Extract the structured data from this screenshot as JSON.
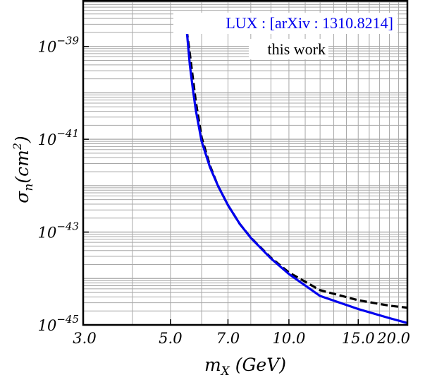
{
  "chart_data": {
    "type": "line",
    "xlabel": "m_X (GeV)",
    "ylabel": "σ_n(cm^2)",
    "x_scale": "log",
    "y_scale": "log",
    "xlim": [
      3.0,
      20.0
    ],
    "ylim": [
      1e-45,
      1e-38
    ],
    "x_ticks": [
      {
        "value": 3.0,
        "label": "3.0"
      },
      {
        "value": 5.0,
        "label": "5.0"
      },
      {
        "value": 7.0,
        "label": "7.0"
      },
      {
        "value": 10.0,
        "label": "10.0"
      },
      {
        "value": 15.0,
        "label": "15.0"
      },
      {
        "value": 20.0,
        "label": "20.0"
      }
    ],
    "y_ticks": [
      {
        "value": 1e-45,
        "base": "10",
        "exp": "−45"
      },
      {
        "value": 1e-43,
        "base": "10",
        "exp": "−43"
      },
      {
        "value": 1e-41,
        "base": "10",
        "exp": "−41"
      },
      {
        "value": 1e-39,
        "base": "10",
        "exp": "−39"
      }
    ],
    "grid": true,
    "legend_position": "top-right",
    "series": [
      {
        "name": "LUX : [arXiv : 1310.8214]",
        "color": "#0000ee",
        "style": "solid",
        "points": [
          [
            5.5,
            2.2e-39
          ],
          [
            5.6,
            4e-40
          ],
          [
            5.7,
            1.2e-40
          ],
          [
            5.8,
            4.2e-41
          ],
          [
            6.0,
            9e-42
          ],
          [
            6.3,
            2.5e-42
          ],
          [
            6.6,
            1e-42
          ],
          [
            7.0,
            3.8e-43
          ],
          [
            7.5,
            1.5e-43
          ],
          [
            8.0,
            7.5e-44
          ],
          [
            9.0,
            2.7e-44
          ],
          [
            10.0,
            1.25e-44
          ],
          [
            12.0,
            4.2e-45
          ],
          [
            15.0,
            2.2e-45
          ],
          [
            18.0,
            1.4e-45
          ],
          [
            20.0,
            1.1e-45
          ]
        ]
      },
      {
        "name": "this work",
        "color": "#000000",
        "style": "dashed",
        "points": [
          [
            5.5,
            2.2e-39
          ],
          [
            5.6,
            7e-40
          ],
          [
            5.7,
            2.1e-40
          ],
          [
            5.8,
            6.5e-41
          ],
          [
            6.0,
            1.1e-41
          ],
          [
            6.3,
            2.7e-42
          ],
          [
            6.6,
            1e-42
          ],
          [
            7.0,
            3.8e-43
          ],
          [
            7.5,
            1.5e-43
          ],
          [
            8.0,
            7.6e-44
          ],
          [
            9.0,
            2.8e-44
          ],
          [
            10.0,
            1.35e-44
          ],
          [
            12.0,
            5.6e-45
          ],
          [
            15.0,
            3.4e-45
          ],
          [
            18.0,
            2.6e-45
          ],
          [
            20.0,
            2.35e-45
          ]
        ]
      }
    ]
  }
}
